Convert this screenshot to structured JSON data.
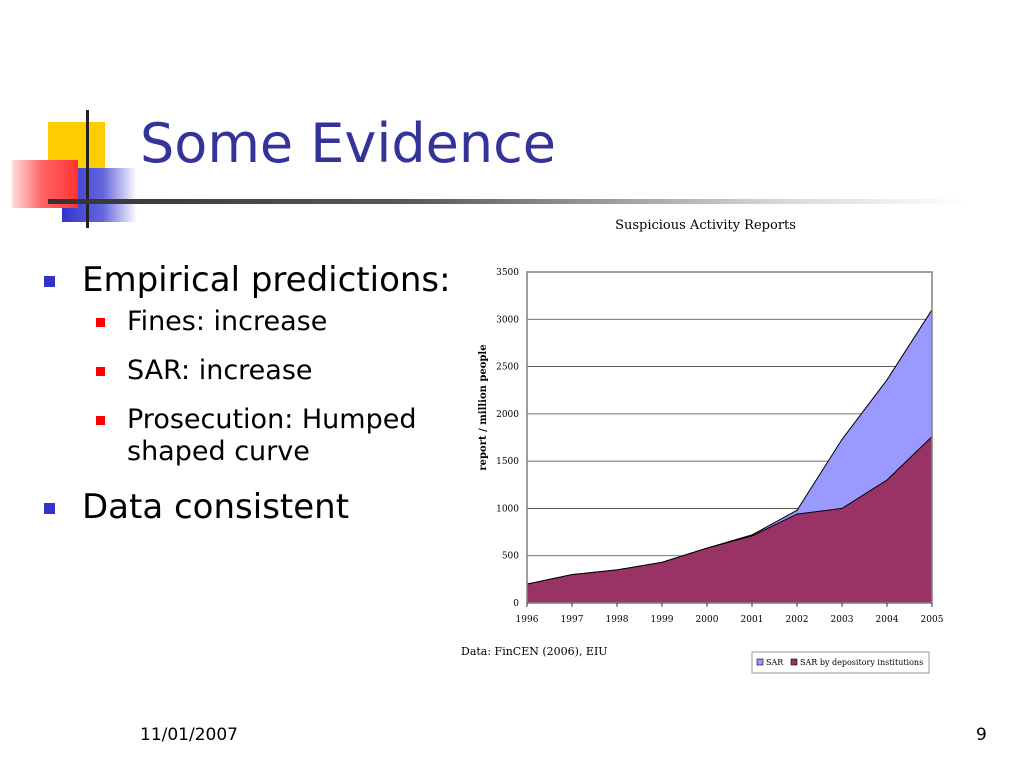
{
  "slide": {
    "title": "Some Evidence",
    "bullets": [
      {
        "text": "Empirical predictions:",
        "sub": [
          "Fines: increase",
          "SAR: increase",
          "Prosecution: Humped shaped curve"
        ]
      },
      {
        "text": "Data consistent",
        "sub": []
      }
    ],
    "source": "Data: FinCEN (2006), EIU",
    "date": "11/01/2007",
    "page": "9"
  },
  "chart_data": {
    "type": "area",
    "title": "Suspicious Activity Reports",
    "xlabel": "",
    "ylabel": "report / million people",
    "x": [
      "1996",
      "1997",
      "1998",
      "1999",
      "2000",
      "2001",
      "2002",
      "2003",
      "2004",
      "2005"
    ],
    "ylim": [
      0,
      3500
    ],
    "yticks": [
      "0",
      "500",
      "1000",
      "1500",
      "2000",
      "2500",
      "3000",
      "3500"
    ],
    "grid": true,
    "legend": "bottom-right",
    "series": [
      {
        "name": "SAR",
        "color": "#9999ff",
        "values": [
          200,
          300,
          350,
          430,
          580,
          720,
          980,
          1730,
          2360,
          3100
        ]
      },
      {
        "name": "SAR by depository institutions",
        "color": "#993366",
        "values": [
          200,
          300,
          350,
          430,
          580,
          710,
          940,
          1000,
          1300,
          1760
        ]
      }
    ]
  }
}
